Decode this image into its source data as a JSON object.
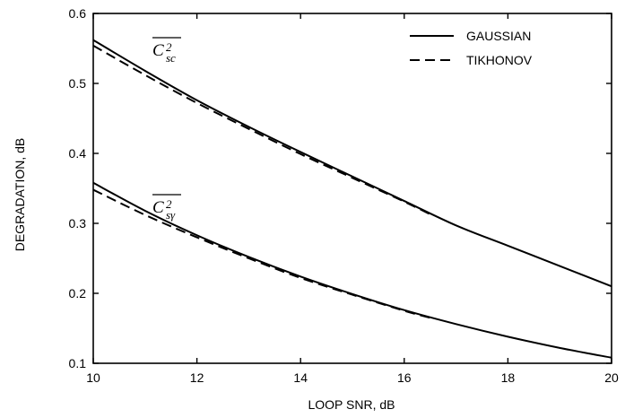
{
  "chart_data": {
    "type": "line",
    "xlabel": "LOOP SNR, dB",
    "ylabel": "DEGRADATION, dB",
    "xlim": [
      10,
      20
    ],
    "ylim": [
      0.1,
      0.6
    ],
    "xticks": [
      10,
      12,
      14,
      16,
      18,
      20
    ],
    "yticks": [
      0.1,
      0.2,
      0.3,
      0.4,
      0.5,
      0.6
    ],
    "xtick_labels": [
      "10",
      "12",
      "14",
      "16",
      "18",
      "20"
    ],
    "ytick_labels": [
      "0.1",
      "0.2",
      "0.3",
      "0.4",
      "0.5",
      "0.6"
    ],
    "grid": false,
    "legend_position": "top-right",
    "legend": [
      {
        "label": "GAUSSIAN",
        "style": "solid"
      },
      {
        "label": "TIKHONOV",
        "style": "dashed"
      }
    ],
    "curve_labels": [
      {
        "base": "C",
        "sup": "2",
        "sub": "sc",
        "group": "upper"
      },
      {
        "base": "C",
        "sup": "2",
        "sub": "sγ",
        "group": "lower"
      }
    ],
    "series": [
      {
        "name": "GAUSSIAN",
        "style": "solid",
        "group": "upper",
        "x": [
          10,
          11,
          12,
          13,
          14,
          15,
          16,
          17,
          18,
          19,
          20
        ],
        "y": [
          0.562,
          0.518,
          0.476,
          0.438,
          0.402,
          0.367,
          0.332,
          0.297,
          0.268,
          0.239,
          0.21
        ]
      },
      {
        "name": "TIKHONOV",
        "style": "dashed",
        "group": "upper",
        "x": [
          10,
          11,
          12,
          13,
          14,
          15,
          16,
          16.5
        ],
        "y": [
          0.554,
          0.512,
          0.472,
          0.435,
          0.399,
          0.365,
          0.331,
          0.313
        ]
      },
      {
        "name": "GAUSSIAN",
        "style": "solid",
        "group": "lower",
        "x": [
          10,
          11,
          12,
          13,
          14,
          15,
          16,
          17,
          18,
          19,
          20
        ],
        "y": [
          0.358,
          0.318,
          0.283,
          0.252,
          0.224,
          0.199,
          0.176,
          0.156,
          0.138,
          0.122,
          0.108
        ]
      },
      {
        "name": "TIKHONOV",
        "style": "dashed",
        "group": "lower",
        "x": [
          10,
          11,
          12,
          13,
          14,
          15,
          16,
          16.5
        ],
        "y": [
          0.348,
          0.312,
          0.28,
          0.25,
          0.222,
          0.198,
          0.175,
          0.165
        ]
      }
    ]
  }
}
